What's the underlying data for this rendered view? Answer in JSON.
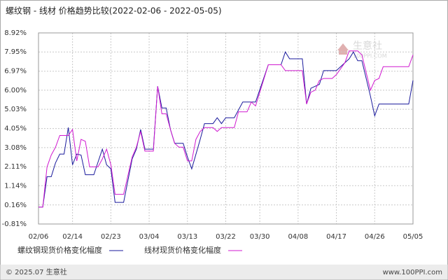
{
  "chart_data": {
    "type": "line",
    "title": "螺纹钢 - 线材 价格趋势比较(2022-02-06 - 2022-05-05)",
    "ylim": [
      -0.81,
      8.92
    ],
    "yticks": [
      {
        "value": -0.81,
        "label": "-0.81%"
      },
      {
        "value": 0.16,
        "label": "0.16%"
      },
      {
        "value": 1.14,
        "label": "1.14%"
      },
      {
        "value": 2.11,
        "label": "2.11%"
      },
      {
        "value": 3.08,
        "label": "3.08%"
      },
      {
        "value": 4.05,
        "label": "4.05%"
      },
      {
        "value": 5.03,
        "label": "5.03%"
      },
      {
        "value": 6.0,
        "label": "6.00%"
      },
      {
        "value": 6.97,
        "label": "6.97%"
      },
      {
        "value": 7.95,
        "label": "7.95%"
      },
      {
        "value": 8.92,
        "label": "8.92%"
      }
    ],
    "xlim": [
      "02/06",
      "05/05"
    ],
    "xticks": [
      "02/06",
      "02/14",
      "02/23",
      "03/04",
      "03/13",
      "03/22",
      "03/30",
      "04/08",
      "04/17",
      "04/26",
      "05/05"
    ],
    "grid": true,
    "series": [
      {
        "name": "螺纹钢现货价格变化幅度",
        "color": "#1a1a9c",
        "x": [
          "02/06",
          "02/07",
          "02/08",
          "02/09",
          "02/10",
          "02/11",
          "02/12",
          "02/13",
          "02/14",
          "02/15",
          "02/16",
          "02/17",
          "02/19",
          "02/21",
          "02/22",
          "02/23",
          "02/24",
          "02/26",
          "02/28",
          "03/01",
          "03/02",
          "03/03",
          "03/05",
          "03/06",
          "03/07",
          "03/08",
          "03/09",
          "03/10",
          "03/12",
          "03/13",
          "03/14",
          "03/16",
          "03/17",
          "03/19",
          "03/20",
          "03/21",
          "03/22",
          "03/24",
          "03/26",
          "03/29",
          "04/01",
          "04/04",
          "04/05",
          "04/06",
          "04/09",
          "04/10",
          "04/11",
          "04/13",
          "04/14",
          "04/17",
          "04/18",
          "04/20",
          "04/21",
          "04/22",
          "04/23",
          "04/25",
          "04/26",
          "04/27",
          "04/29",
          "05/04",
          "05/05"
        ],
        "values": [
          0.05,
          0.05,
          1.6,
          1.6,
          2.3,
          2.75,
          2.75,
          4.1,
          2.2,
          2.75,
          2.7,
          1.7,
          1.7,
          3.0,
          2.2,
          2.0,
          0.29,
          0.29,
          2.5,
          3.0,
          4.0,
          3.0,
          3.0,
          6.2,
          5.1,
          5.1,
          4.0,
          3.3,
          3.3,
          2.6,
          2.0,
          3.5,
          4.3,
          4.3,
          4.6,
          4.3,
          4.6,
          4.6,
          5.4,
          5.4,
          7.3,
          7.3,
          7.95,
          7.6,
          7.6,
          5.3,
          6.1,
          6.3,
          7.0,
          7.0,
          7.2,
          7.6,
          7.95,
          7.5,
          7.5,
          5.7,
          4.7,
          5.3,
          5.3,
          5.3,
          6.5
        ]
      },
      {
        "name": "线材现货价格变化幅度",
        "color": "#d01ad0",
        "x": [
          "02/06",
          "02/07",
          "02/08",
          "02/09",
          "02/10",
          "02/11",
          "02/12",
          "02/13",
          "02/14",
          "02/15",
          "02/16",
          "02/17",
          "02/18",
          "02/20",
          "02/21",
          "02/22",
          "02/23",
          "02/24",
          "02/26",
          "02/28",
          "03/01",
          "03/02",
          "03/03",
          "03/05",
          "03/06",
          "03/07",
          "03/08",
          "03/09",
          "03/10",
          "03/11",
          "03/12",
          "03/13",
          "03/14",
          "03/15",
          "03/16",
          "03/17",
          "03/19",
          "03/20",
          "03/21",
          "03/24",
          "03/25",
          "03/27",
          "03/28",
          "03/29",
          "04/01",
          "04/04",
          "04/05",
          "04/09",
          "04/10",
          "04/11",
          "04/12",
          "04/13",
          "04/14",
          "04/16",
          "04/17",
          "04/19",
          "04/20",
          "04/22",
          "04/23",
          "04/25",
          "04/26",
          "04/27",
          "04/28",
          "05/04",
          "05/05"
        ],
        "values": [
          0.05,
          0.05,
          2.1,
          2.7,
          3.1,
          3.7,
          3.7,
          3.7,
          4.0,
          2.4,
          3.5,
          3.4,
          2.1,
          2.1,
          2.5,
          3.0,
          2.2,
          0.7,
          0.7,
          2.6,
          3.1,
          3.9,
          2.9,
          2.9,
          6.2,
          4.8,
          4.8,
          4.0,
          3.3,
          3.1,
          3.1,
          2.4,
          2.4,
          3.5,
          3.9,
          4.1,
          4.1,
          3.9,
          4.1,
          4.1,
          4.9,
          4.9,
          5.4,
          5.2,
          7.3,
          7.3,
          7.0,
          7.0,
          5.3,
          5.9,
          6.0,
          6.5,
          6.6,
          6.6,
          6.8,
          7.4,
          8.0,
          8.0,
          7.8,
          6.0,
          6.5,
          6.6,
          7.2,
          7.2,
          7.8
        ]
      }
    ],
    "watermark": [
      "生意社",
      "100PPI.COM"
    ],
    "footer": {
      "left": "© 2025.07 生意社",
      "right": "www.100PPI.com"
    }
  }
}
